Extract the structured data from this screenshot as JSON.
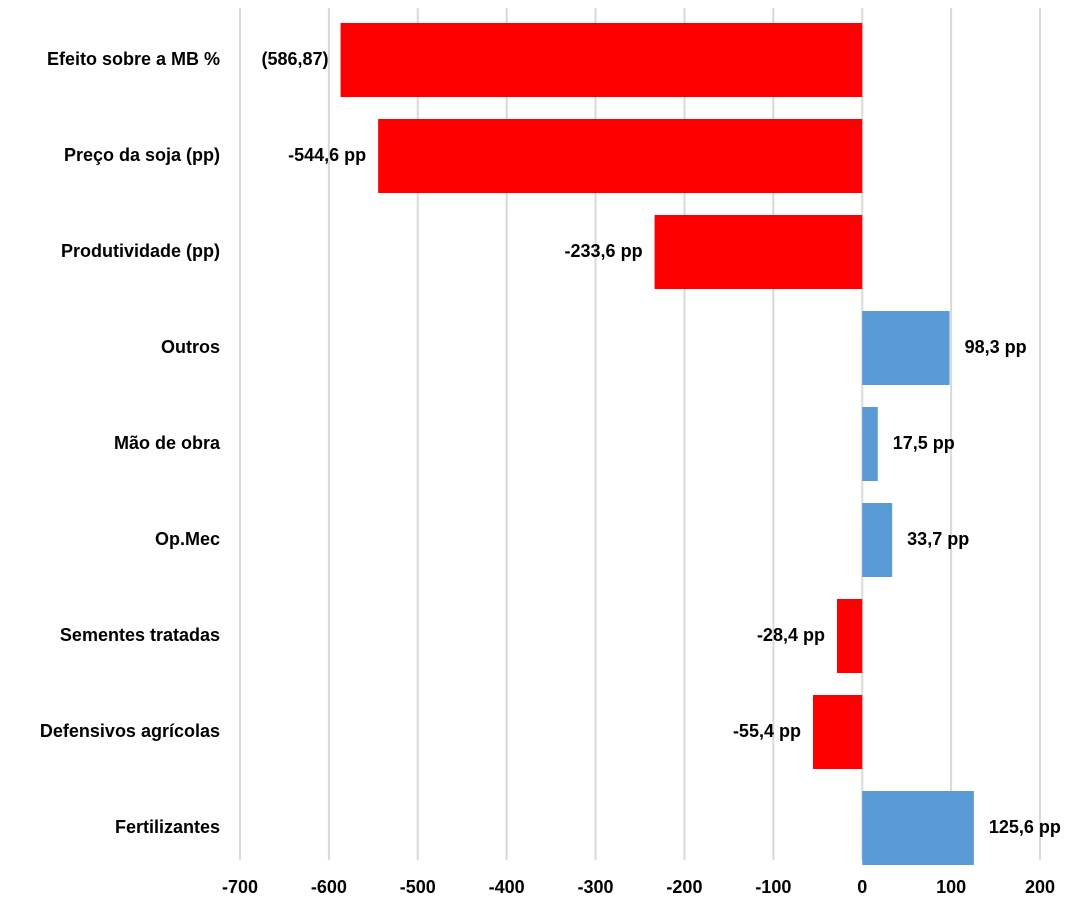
{
  "chart_data": {
    "type": "bar",
    "orientation": "horizontal",
    "title": "",
    "xlabel": "",
    "ylabel": "",
    "categories": [
      "Efeito sobre a MB %",
      "Preço da soja (pp)",
      "Produtividade (pp)",
      "Outros",
      "Mão de obra",
      "Op.Mec",
      "Sementes tratadas",
      "Defensivos agrícolas",
      "Fertilizantes"
    ],
    "values": [
      -586.87,
      -544.6,
      -233.6,
      98.3,
      17.5,
      33.7,
      -28.4,
      -55.4,
      125.6
    ],
    "data_labels": [
      "(586,87)",
      "-544,6 pp",
      "-233,6 pp",
      "98,3 pp",
      "17,5 pp",
      "33,7 pp",
      "-28,4 pp",
      "-55,4 pp",
      "125,6 pp"
    ],
    "xlim": [
      -700,
      200
    ],
    "x_ticks": [
      -700,
      -600,
      -500,
      -400,
      -300,
      -200,
      -100,
      0,
      100,
      200
    ],
    "x_tick_labels": [
      "-700",
      "-600",
      "-500",
      "-400",
      "-300",
      "-200",
      "-100",
      "0",
      "100",
      "200"
    ],
    "grid": true,
    "colors": {
      "negative": "#ff0000",
      "positive": "#5b9bd5",
      "grid": "#d9d9d9"
    }
  }
}
